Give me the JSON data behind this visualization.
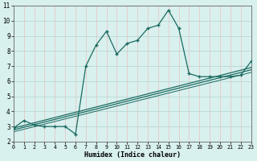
{
  "x": [
    0,
    1,
    2,
    3,
    4,
    5,
    6,
    7,
    8,
    9,
    10,
    11,
    12,
    13,
    14,
    15,
    16,
    17,
    18,
    19,
    20,
    21,
    22,
    23
  ],
  "y_main": [
    2.9,
    3.4,
    3.1,
    3.0,
    3.0,
    3.0,
    2.5,
    7.0,
    8.4,
    9.3,
    7.8,
    8.5,
    8.7,
    9.5,
    9.7,
    10.7,
    9.5,
    6.5,
    6.3,
    6.3,
    6.3,
    6.3,
    6.4,
    7.3
  ],
  "trend1_x": [
    0,
    23
  ],
  "trend1_y": [
    2.9,
    6.9
  ],
  "trend2_x": [
    0,
    23
  ],
  "trend2_y": [
    2.78,
    6.75
  ],
  "trend3_x": [
    0,
    23
  ],
  "trend3_y": [
    2.65,
    6.58
  ],
  "bg_color": "#d8f0ee",
  "grid_color_h": "#b8d8d4",
  "grid_color_v": "#e8c8c8",
  "line_color": "#1a6a60",
  "xlabel": "Humidex (Indice chaleur)",
  "ylim": [
    2,
    11
  ],
  "xlim": [
    0,
    23
  ],
  "yticks": [
    2,
    3,
    4,
    5,
    6,
    7,
    8,
    9,
    10,
    11
  ],
  "xticks": [
    0,
    1,
    2,
    3,
    4,
    5,
    6,
    7,
    8,
    9,
    10,
    11,
    12,
    13,
    14,
    15,
    16,
    17,
    18,
    19,
    20,
    21,
    22,
    23
  ]
}
